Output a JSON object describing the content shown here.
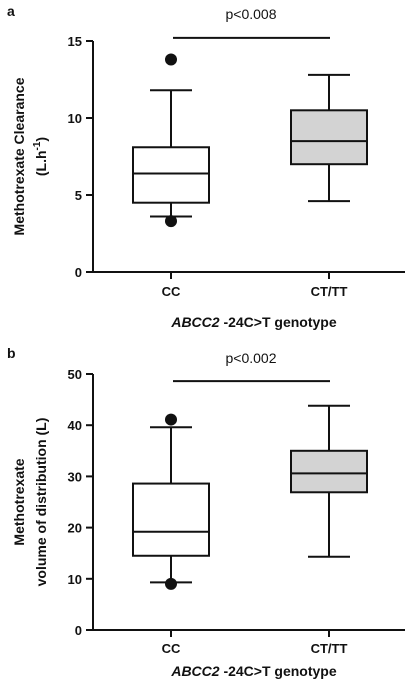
{
  "chart_data": [
    {
      "type": "box",
      "panel_label": "a",
      "ylabel_line1": "Methotrexate Clearance",
      "ylabel_line2_base": "(L.h",
      "ylabel_line2_sup": "-1",
      "ylabel_line2_end": ")",
      "xlabel_italic": "ABCC2",
      "xlabel_rest": " -24C>T genotype",
      "ylim": [
        0,
        15
      ],
      "yticks": [
        0,
        5,
        10,
        15
      ],
      "categories": [
        "CC",
        "CT/TT"
      ],
      "boxes": [
        {
          "category": "CC",
          "whisker_low": 3.6,
          "q1": 4.5,
          "median": 6.4,
          "q3": 8.1,
          "whisker_high": 11.8,
          "outliers": [
            13.8,
            3.3
          ],
          "fill": "#ffffff"
        },
        {
          "category": "CT/TT",
          "whisker_low": 4.6,
          "q1": 7.0,
          "median": 8.5,
          "q3": 10.5,
          "whisker_high": 12.8,
          "outliers": [],
          "fill": "#d3d3d3"
        }
      ],
      "significance": {
        "text": "p<0.008",
        "y": 15.2
      }
    },
    {
      "type": "box",
      "panel_label": "b",
      "ylabel_line1": "Methotrexate",
      "ylabel_line2": "volume of distribution (L)",
      "xlabel_italic": "ABCC2",
      "xlabel_rest": " -24C>T genotype",
      "ylim": [
        0,
        50
      ],
      "yticks": [
        0,
        10,
        20,
        30,
        40,
        50
      ],
      "categories": [
        "CC",
        "CT/TT"
      ],
      "boxes": [
        {
          "category": "CC",
          "whisker_low": 9.3,
          "q1": 14.5,
          "median": 19.2,
          "q3": 28.6,
          "whisker_high": 39.6,
          "outliers": [
            41.1,
            9.0
          ],
          "fill": "#ffffff"
        },
        {
          "category": "CT/TT",
          "whisker_low": 14.3,
          "q1": 26.9,
          "median": 30.6,
          "q3": 35.0,
          "whisker_high": 43.8,
          "outliers": [],
          "fill": "#d3d3d3"
        }
      ],
      "significance": {
        "text": "p<0.002",
        "y": 48.6
      }
    }
  ]
}
